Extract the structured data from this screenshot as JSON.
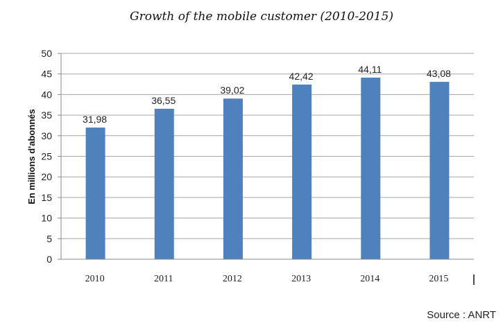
{
  "chart_data": {
    "type": "bar",
    "title": "Growth of the mobile customer (2010-2015)",
    "xlabel": "",
    "ylabel": "En millions d'abonnés",
    "categories": [
      "2010",
      "2011",
      "2012",
      "2013",
      "2014",
      "2015"
    ],
    "values": [
      31.98,
      36.55,
      39.02,
      42.42,
      44.11,
      43.08
    ],
    "value_labels": [
      "31,98",
      "36,55",
      "39,02",
      "42,42",
      "44,11",
      "43,08"
    ],
    "ylim": [
      0,
      50
    ],
    "yticks": [
      "0",
      "5",
      "10",
      "15",
      "20",
      "25",
      "30",
      "35",
      "40",
      "45",
      "50"
    ],
    "grid": true,
    "legend": "none",
    "bar_color": "#4f81bd",
    "grid_color": "#a6a6a6"
  },
  "source": "Source : ANRT"
}
